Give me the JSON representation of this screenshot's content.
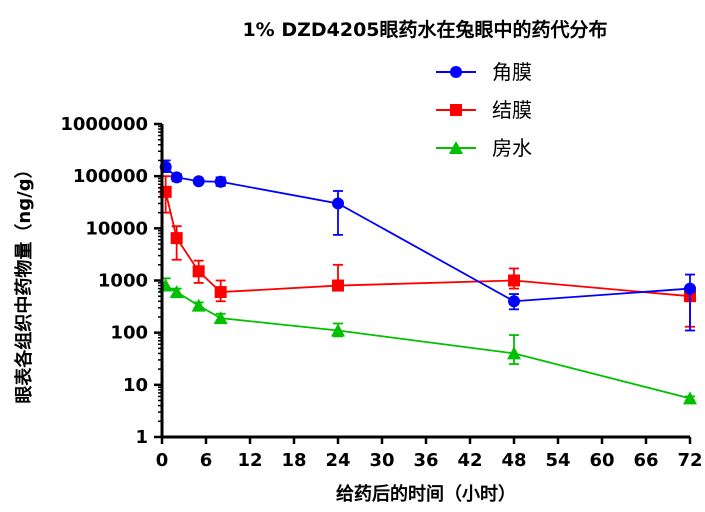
{
  "chart_data": {
    "type": "line",
    "title": "1% DZD4205眼药水在兔眼中的药代分布",
    "xlabel": "给药后的时间（小时）",
    "ylabel": "眼表各组织中药物量（ng/g）",
    "x_ticks": [
      0,
      6,
      12,
      18,
      24,
      30,
      36,
      42,
      48,
      54,
      60,
      66,
      72
    ],
    "y_scale": "log",
    "y_ticks": [
      1,
      10,
      100,
      1000,
      10000,
      100000,
      1000000
    ],
    "xlim": [
      0,
      72
    ],
    "ylim": [
      1,
      1000000
    ],
    "grid": false,
    "legend_position": "top-right",
    "series": [
      {
        "name": "角膜",
        "color": "#0000ff",
        "marker": "circle",
        "points": [
          {
            "x": 0.5,
            "y": 150000,
            "err_hi": 200000,
            "err_lo": 120000
          },
          {
            "x": 2,
            "y": 95000,
            "err_hi": 110000,
            "err_lo": 80000
          },
          {
            "x": 5,
            "y": 80000,
            "err_hi": 90000,
            "err_lo": 75000
          },
          {
            "x": 8,
            "y": 78000,
            "err_hi": 95000,
            "err_lo": 65000
          },
          {
            "x": 24,
            "y": 30000,
            "err_hi": 52000,
            "err_lo": 7500
          },
          {
            "x": 48,
            "y": 400,
            "err_hi": 550,
            "err_lo": 280
          },
          {
            "x": 72,
            "y": 700,
            "err_hi": 1300,
            "err_lo": 110
          }
        ]
      },
      {
        "name": "结膜",
        "color": "#ff0000",
        "marker": "square",
        "points": [
          {
            "x": 0.5,
            "y": 50000,
            "err_hi": 100000,
            "err_lo": 20000
          },
          {
            "x": 2,
            "y": 6500,
            "err_hi": 11000,
            "err_lo": 2500
          },
          {
            "x": 5,
            "y": 1500,
            "err_hi": 2400,
            "err_lo": 900
          },
          {
            "x": 8,
            "y": 600,
            "err_hi": 1000,
            "err_lo": 400
          },
          {
            "x": 24,
            "y": 800,
            "err_hi": 2000,
            "err_lo": 650
          },
          {
            "x": 48,
            "y": 1000,
            "err_hi": 1700,
            "err_lo": 700
          },
          {
            "x": 72,
            "y": 500,
            "err_hi": 650,
            "err_lo": 130
          }
        ]
      },
      {
        "name": "房水",
        "color": "#00c000",
        "marker": "triangle",
        "points": [
          {
            "x": 0.5,
            "y": 800,
            "err_hi": 1100,
            "err_lo": 650
          },
          {
            "x": 2,
            "y": 600,
            "err_hi": 700,
            "err_lo": 500
          },
          {
            "x": 5,
            "y": 330,
            "err_hi": 380,
            "err_lo": 300
          },
          {
            "x": 8,
            "y": 190,
            "err_hi": 230,
            "err_lo": 160
          },
          {
            "x": 24,
            "y": 110,
            "err_hi": 150,
            "err_lo": 85
          },
          {
            "x": 48,
            "y": 40,
            "err_hi": 90,
            "err_lo": 25
          },
          {
            "x": 72,
            "y": 5.5,
            "err_hi": 6,
            "err_lo": 5
          }
        ]
      }
    ]
  }
}
